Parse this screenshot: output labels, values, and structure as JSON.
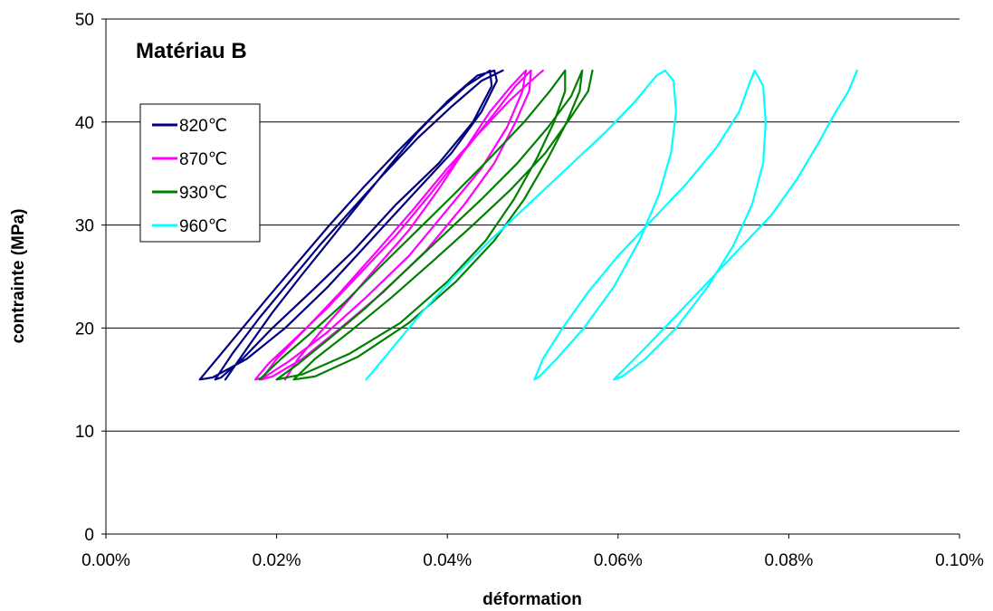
{
  "chart_data": {
    "type": "line",
    "title": "Matériau B",
    "xlabel": "déformation",
    "ylabel": "contrainte (MPa)",
    "xlim": [
      0,
      0.1
    ],
    "ylim": [
      0,
      50
    ],
    "x_unit": "% strain",
    "xticks": [
      0,
      0.02,
      0.04,
      0.06,
      0.08,
      0.1
    ],
    "xtick_labels": [
      "0.00%",
      "0.02%",
      "0.04%",
      "0.06%",
      "0.08%",
      "0.10%"
    ],
    "yticks": [
      0,
      10,
      20,
      30,
      40,
      50
    ],
    "ytick_labels": [
      "0",
      "10",
      "20",
      "30",
      "40",
      "50"
    ],
    "grid": "horizontal",
    "legend_position": "top-left",
    "series": [
      {
        "name": "820℃",
        "color": "#000080",
        "points": [
          [
            0.014,
            15
          ],
          [
            0.0165,
            18
          ],
          [
            0.0195,
            21.5
          ],
          [
            0.0228,
            25
          ],
          [
            0.0262,
            28.5
          ],
          [
            0.0296,
            32
          ],
          [
            0.033,
            35.5
          ],
          [
            0.0365,
            39
          ],
          [
            0.04,
            42
          ],
          [
            0.0435,
            44.5
          ],
          [
            0.0455,
            45
          ],
          [
            0.0458,
            44
          ],
          [
            0.044,
            41
          ],
          [
            0.0405,
            37
          ],
          [
            0.036,
            33
          ],
          [
            0.031,
            28.5
          ],
          [
            0.026,
            24
          ],
          [
            0.021,
            20
          ],
          [
            0.0165,
            17
          ],
          [
            0.0125,
            15.2
          ],
          [
            0.011,
            15
          ],
          [
            0.0125,
            16.5
          ],
          [
            0.0155,
            19.5
          ],
          [
            0.019,
            23
          ],
          [
            0.0226,
            26.5
          ],
          [
            0.0262,
            30
          ],
          [
            0.03,
            33.5
          ],
          [
            0.034,
            37
          ],
          [
            0.0382,
            40.5
          ],
          [
            0.0422,
            43.5
          ],
          [
            0.045,
            45
          ],
          [
            0.0452,
            43.5
          ],
          [
            0.043,
            40
          ],
          [
            0.039,
            36
          ],
          [
            0.034,
            32
          ],
          [
            0.029,
            27.5
          ],
          [
            0.024,
            23.5
          ],
          [
            0.0195,
            20
          ],
          [
            0.016,
            17
          ],
          [
            0.0135,
            15.2
          ],
          [
            0.0128,
            15
          ],
          [
            0.0148,
            17.5
          ],
          [
            0.018,
            21
          ],
          [
            0.0215,
            24.5
          ],
          [
            0.025,
            28
          ],
          [
            0.0288,
            31.5
          ],
          [
            0.0326,
            35
          ],
          [
            0.0366,
            38.5
          ],
          [
            0.0405,
            41.5
          ],
          [
            0.044,
            44
          ],
          [
            0.0465,
            45
          ]
        ]
      },
      {
        "name": "870℃",
        "color": "#ff00ff",
        "points": [
          [
            0.021,
            15
          ],
          [
            0.0225,
            17
          ],
          [
            0.025,
            19.5
          ],
          [
            0.0282,
            22.5
          ],
          [
            0.0318,
            26
          ],
          [
            0.0355,
            29.5
          ],
          [
            0.039,
            33.5
          ],
          [
            0.0422,
            37.5
          ],
          [
            0.045,
            41
          ],
          [
            0.0475,
            43.5
          ],
          [
            0.0492,
            45
          ],
          [
            0.0488,
            43
          ],
          [
            0.047,
            39.5
          ],
          [
            0.044,
            35.5
          ],
          [
            0.04,
            31.5
          ],
          [
            0.0355,
            27
          ],
          [
            0.0305,
            23
          ],
          [
            0.0258,
            19.5
          ],
          [
            0.0215,
            16.8
          ],
          [
            0.0185,
            15.2
          ],
          [
            0.0175,
            15
          ],
          [
            0.019,
            16.5
          ],
          [
            0.0222,
            19
          ],
          [
            0.026,
            22
          ],
          [
            0.03,
            25.5
          ],
          [
            0.034,
            29
          ],
          [
            0.038,
            33
          ],
          [
            0.0418,
            37
          ],
          [
            0.0452,
            40.5
          ],
          [
            0.048,
            43.5
          ],
          [
            0.0498,
            45
          ],
          [
            0.0496,
            43
          ],
          [
            0.048,
            40
          ],
          [
            0.0455,
            36
          ],
          [
            0.042,
            32
          ],
          [
            0.0375,
            27.5
          ],
          [
            0.0325,
            23.5
          ],
          [
            0.0275,
            20
          ],
          [
            0.023,
            17
          ],
          [
            0.0195,
            15.3
          ],
          [
            0.0182,
            15
          ],
          [
            0.02,
            17
          ],
          [
            0.0235,
            20
          ],
          [
            0.0275,
            23.5
          ],
          [
            0.0318,
            27.5
          ],
          [
            0.036,
            31.5
          ],
          [
            0.04,
            35.5
          ],
          [
            0.0438,
            39
          ],
          [
            0.0472,
            42
          ],
          [
            0.0498,
            44
          ],
          [
            0.0512,
            45
          ]
        ]
      },
      {
        "name": "930℃",
        "color": "#008000",
        "points": [
          [
            0.018,
            15
          ],
          [
            0.0205,
            17
          ],
          [
            0.024,
            19.5
          ],
          [
            0.028,
            22.5
          ],
          [
            0.0322,
            26
          ],
          [
            0.0365,
            29.5
          ],
          [
            0.0408,
            33
          ],
          [
            0.045,
            36.5
          ],
          [
            0.049,
            40
          ],
          [
            0.052,
            43
          ],
          [
            0.0538,
            45
          ],
          [
            0.0538,
            43
          ],
          [
            0.0525,
            40
          ],
          [
            0.0505,
            36.5
          ],
          [
            0.0478,
            32.5
          ],
          [
            0.0445,
            28.5
          ],
          [
            0.04,
            24.5
          ],
          [
            0.0345,
            20.5
          ],
          [
            0.0285,
            17.5
          ],
          [
            0.023,
            15.5
          ],
          [
            0.02,
            15
          ],
          [
            0.0225,
            16.5
          ],
          [
            0.0262,
            19
          ],
          [
            0.0305,
            22
          ],
          [
            0.035,
            25.5
          ],
          [
            0.0395,
            29
          ],
          [
            0.044,
            32.5
          ],
          [
            0.0482,
            36
          ],
          [
            0.0518,
            39.5
          ],
          [
            0.0545,
            42.5
          ],
          [
            0.0558,
            45
          ],
          [
            0.0555,
            43
          ],
          [
            0.054,
            40
          ],
          [
            0.0518,
            36.5
          ],
          [
            0.049,
            32.5
          ],
          [
            0.0455,
            28.5
          ],
          [
            0.041,
            24.5
          ],
          [
            0.0355,
            20.5
          ],
          [
            0.0295,
            17.2
          ],
          [
            0.0245,
            15.3
          ],
          [
            0.022,
            15
          ],
          [
            0.0245,
            17
          ],
          [
            0.0288,
            19.8
          ],
          [
            0.0335,
            23
          ],
          [
            0.0383,
            26.5
          ],
          [
            0.043,
            30
          ],
          [
            0.0475,
            33.5
          ],
          [
            0.0515,
            37
          ],
          [
            0.0545,
            40.5
          ],
          [
            0.0565,
            43
          ],
          [
            0.057,
            45
          ]
        ]
      },
      {
        "name": "960℃",
        "color": "#00ffff",
        "points": [
          [
            0.0305,
            15
          ],
          [
            0.0335,
            18
          ],
          [
            0.037,
            21.5
          ],
          [
            0.0408,
            25
          ],
          [
            0.045,
            28.5
          ],
          [
            0.0495,
            32
          ],
          [
            0.054,
            35.5
          ],
          [
            0.0585,
            39
          ],
          [
            0.062,
            42
          ],
          [
            0.0645,
            44.5
          ],
          [
            0.0655,
            45
          ],
          [
            0.0665,
            44
          ],
          [
            0.0668,
            41
          ],
          [
            0.0662,
            37
          ],
          [
            0.0648,
            33
          ],
          [
            0.0625,
            28.5
          ],
          [
            0.0595,
            24
          ],
          [
            0.056,
            20
          ],
          [
            0.0528,
            17
          ],
          [
            0.0508,
            15.3
          ],
          [
            0.0502,
            15
          ],
          [
            0.0512,
            17
          ],
          [
            0.0535,
            20
          ],
          [
            0.0565,
            23.5
          ],
          [
            0.06,
            27
          ],
          [
            0.064,
            30.5
          ],
          [
            0.068,
            34
          ],
          [
            0.0715,
            37.5
          ],
          [
            0.0742,
            41
          ],
          [
            0.0755,
            44
          ],
          [
            0.076,
            45
          ],
          [
            0.077,
            43.5
          ],
          [
            0.0773,
            40
          ],
          [
            0.077,
            36
          ],
          [
            0.0757,
            32
          ],
          [
            0.0735,
            28
          ],
          [
            0.0705,
            24
          ],
          [
            0.0668,
            20
          ],
          [
            0.0632,
            17
          ],
          [
            0.0605,
            15.3
          ],
          [
            0.0595,
            15
          ],
          [
            0.0625,
            17.5
          ],
          [
            0.066,
            20.5
          ],
          [
            0.07,
            24
          ],
          [
            0.074,
            27.5
          ],
          [
            0.078,
            31
          ],
          [
            0.081,
            34.5
          ],
          [
            0.0835,
            38
          ],
          [
            0.0855,
            41
          ],
          [
            0.087,
            43
          ],
          [
            0.088,
            45
          ]
        ]
      }
    ]
  }
}
